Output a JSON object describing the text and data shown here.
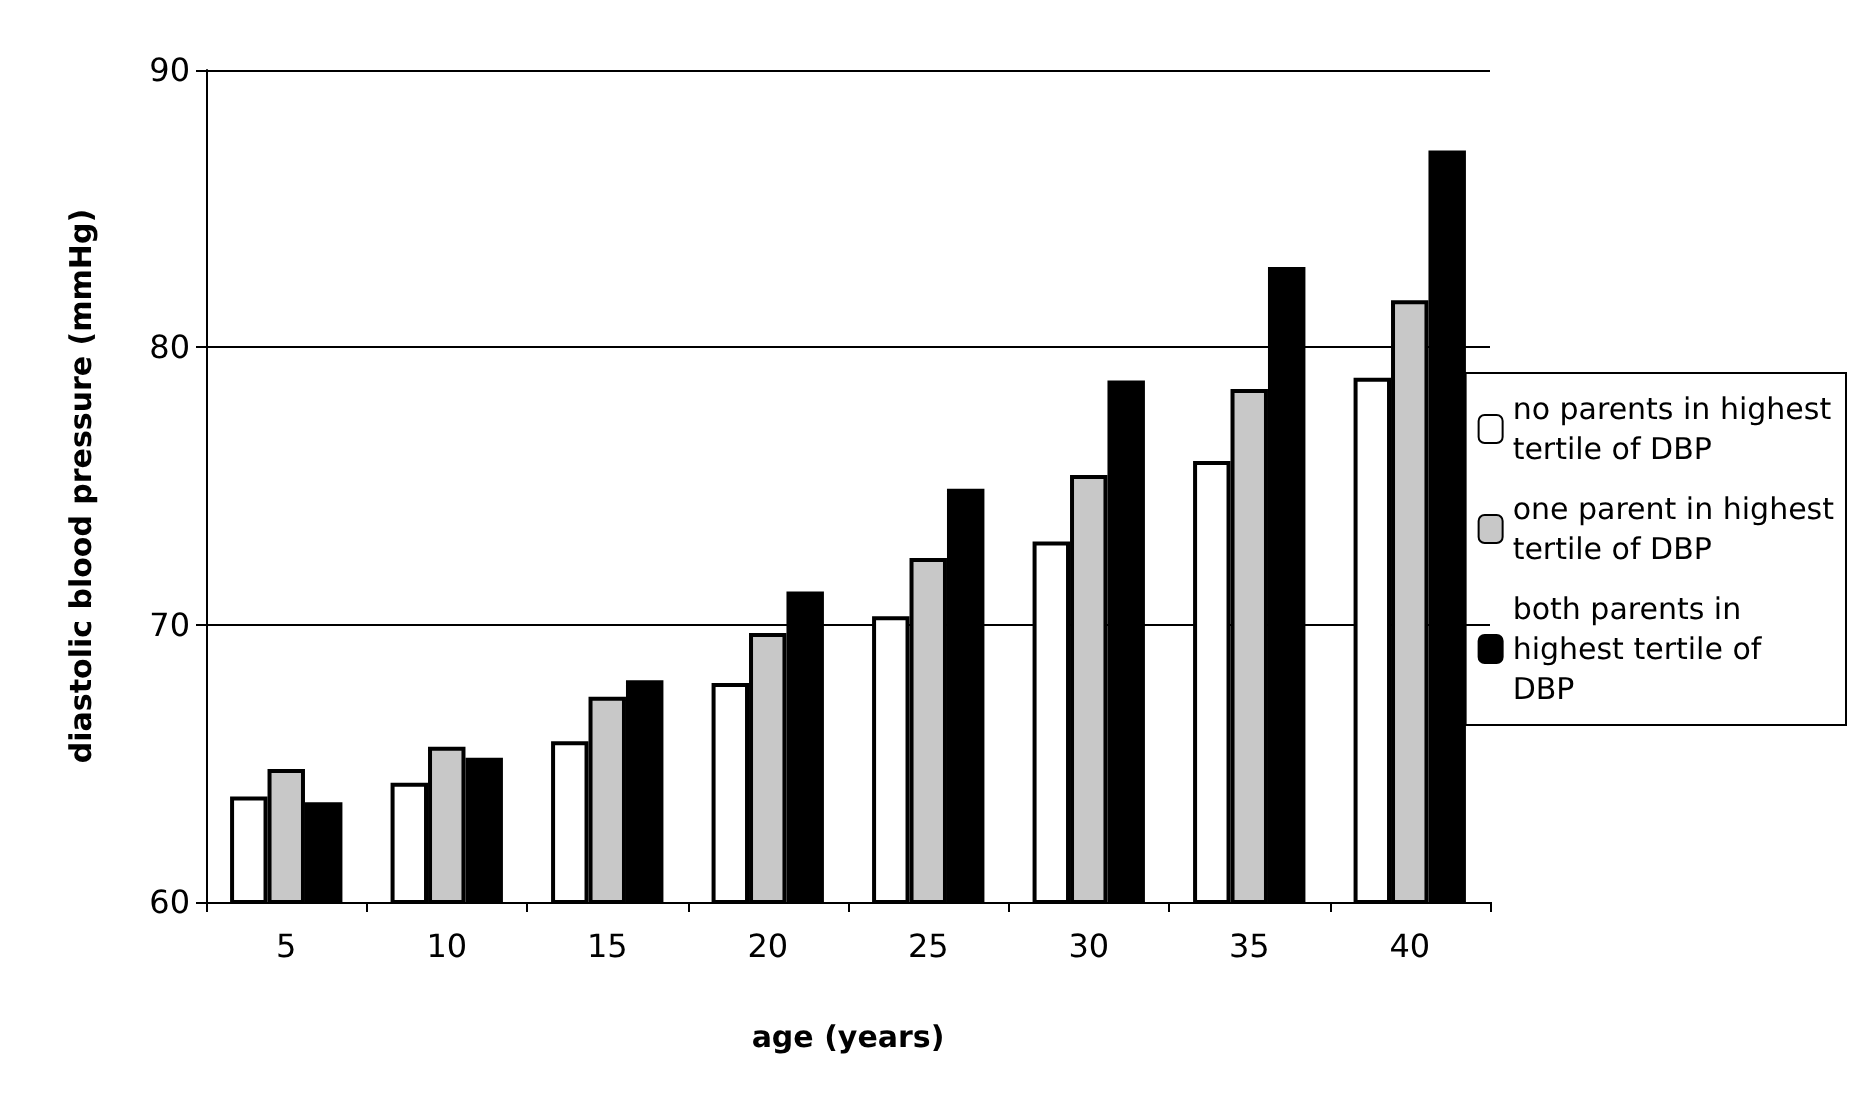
{
  "chart_data": {
    "type": "bar",
    "xlabel": "age (years)",
    "ylabel": "diastolic blood pressure (mmHg)",
    "categories": [
      "5",
      "10",
      "15",
      "20",
      "25",
      "30",
      "35",
      "40"
    ],
    "series": [
      {
        "name": "no parents in highest tertile of DBP",
        "color": "#ffffff",
        "values": [
          63.8,
          64.3,
          65.8,
          67.9,
          70.3,
          73.0,
          75.9,
          78.9
        ]
      },
      {
        "name": "one parent in highest tertile of DBP",
        "color": "#c8c8c8",
        "values": [
          64.8,
          65.6,
          67.4,
          69.7,
          72.4,
          75.4,
          78.5,
          81.7
        ]
      },
      {
        "name": "both parents in highest tertile of DBP",
        "color": "#000000",
        "values": [
          63.6,
          65.2,
          68.0,
          71.2,
          74.9,
          78.8,
          82.9,
          87.1
        ]
      }
    ],
    "ylim": [
      60,
      90
    ],
    "yticks": [
      60,
      70,
      80,
      90
    ],
    "grid": "y",
    "legend": "right"
  }
}
